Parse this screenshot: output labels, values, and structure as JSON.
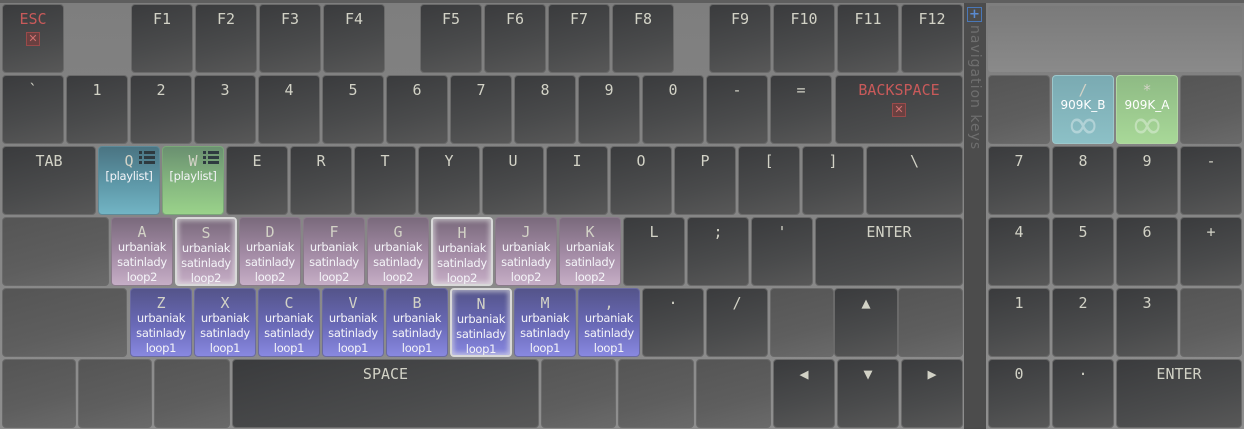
{
  "colors": {
    "pink": "#c6aec6",
    "purple": "#8888e0",
    "teal": "#72b4c4",
    "green": "#9ad28a",
    "warning_label": "#c85a5a"
  },
  "navigation_strip": {
    "label": "navigation keys",
    "icon": "plus-icon"
  },
  "keyboard": {
    "main": [
      [
        {
          "label": "ESC",
          "style": "red",
          "icon": "close-box-icon"
        },
        {
          "label": "F1"
        },
        {
          "label": "F2"
        },
        {
          "label": "F3"
        },
        {
          "label": "F4"
        },
        {
          "label": "F5"
        },
        {
          "label": "F6"
        },
        {
          "label": "F7"
        },
        {
          "label": "F8"
        },
        {
          "label": "F9"
        },
        {
          "label": "F10"
        },
        {
          "label": "F11"
        },
        {
          "label": "F12"
        }
      ],
      [
        {
          "label": "`"
        },
        {
          "label": "1"
        },
        {
          "label": "2"
        },
        {
          "label": "3"
        },
        {
          "label": "4"
        },
        {
          "label": "5"
        },
        {
          "label": "6"
        },
        {
          "label": "7"
        },
        {
          "label": "8"
        },
        {
          "label": "9"
        },
        {
          "label": "0"
        },
        {
          "label": "-"
        },
        {
          "label": "="
        },
        {
          "label": "BACKSPACE",
          "style": "red",
          "icon": "close-box-icon"
        }
      ],
      [
        {
          "label": "TAB"
        },
        {
          "label": "Q",
          "color": "teal",
          "lines": [
            "[playlist]"
          ],
          "icon": "playlist-icon"
        },
        {
          "label": "W",
          "color": "green",
          "lines": [
            "[playlist]"
          ],
          "icon": "playlist-icon"
        },
        {
          "label": "E"
        },
        {
          "label": "R"
        },
        {
          "label": "T"
        },
        {
          "label": "Y"
        },
        {
          "label": "U"
        },
        {
          "label": "I"
        },
        {
          "label": "O"
        },
        {
          "label": "P"
        },
        {
          "label": "["
        },
        {
          "label": "]"
        },
        {
          "label": "\\"
        }
      ],
      [
        {
          "label": "",
          "blank": true
        },
        {
          "label": "A",
          "color": "pink",
          "lines": [
            "urbaniak",
            "satinlady",
            "loop2"
          ]
        },
        {
          "label": "S",
          "color": "pink",
          "lines": [
            "urbaniak",
            "satinlady",
            "loop2"
          ],
          "selected": true
        },
        {
          "label": "D",
          "color": "pink",
          "lines": [
            "urbaniak",
            "satinlady",
            "loop2"
          ]
        },
        {
          "label": "F",
          "color": "pink",
          "lines": [
            "urbaniak",
            "satinlady",
            "loop2"
          ]
        },
        {
          "label": "G",
          "color": "pink",
          "lines": [
            "urbaniak",
            "satinlady",
            "loop2"
          ]
        },
        {
          "label": "H",
          "color": "pink",
          "lines": [
            "urbaniak",
            "satinlady",
            "loop2"
          ],
          "selected": true
        },
        {
          "label": "J",
          "color": "pink",
          "lines": [
            "urbaniak",
            "satinlady",
            "loop2"
          ]
        },
        {
          "label": "K",
          "color": "pink",
          "lines": [
            "urbaniak",
            "satinlady",
            "loop2"
          ]
        },
        {
          "label": "L"
        },
        {
          "label": ";"
        },
        {
          "label": "'"
        },
        {
          "label": "ENTER"
        }
      ],
      [
        {
          "label": "",
          "blank": true
        },
        {
          "label": "Z",
          "color": "purple",
          "lines": [
            "urbaniak",
            "satinlady",
            "loop1"
          ]
        },
        {
          "label": "X",
          "color": "purple",
          "lines": [
            "urbaniak",
            "satinlady",
            "loop1"
          ]
        },
        {
          "label": "C",
          "color": "purple",
          "lines": [
            "urbaniak",
            "satinlady",
            "loop1"
          ]
        },
        {
          "label": "V",
          "color": "purple",
          "lines": [
            "urbaniak",
            "satinlady",
            "loop1"
          ]
        },
        {
          "label": "B",
          "color": "purple",
          "lines": [
            "urbaniak",
            "satinlady",
            "loop1"
          ]
        },
        {
          "label": "N",
          "color": "purple",
          "lines": [
            "urbaniak",
            "satinlady",
            "loop1"
          ],
          "selected": true
        },
        {
          "label": "M",
          "color": "purple",
          "lines": [
            "urbaniak",
            "satinlady",
            "loop1"
          ]
        },
        {
          "label": ",",
          "color": "purple",
          "lines": [
            "urbaniak",
            "satinlady",
            "loop1"
          ]
        },
        {
          "label": "·"
        },
        {
          "label": "/"
        },
        {
          "label": "",
          "blank": true
        },
        {
          "label": "▲"
        },
        {
          "label": "",
          "blank": true
        }
      ],
      [
        {
          "label": "",
          "blank": true
        },
        {
          "label": "",
          "blank": true
        },
        {
          "label": "",
          "blank": true
        },
        {
          "label": "SPACE"
        },
        {
          "label": "",
          "blank": true
        },
        {
          "label": "",
          "blank": true
        },
        {
          "label": "",
          "blank": true
        },
        {
          "label": "◀"
        },
        {
          "label": "▼"
        },
        {
          "label": "▶"
        }
      ]
    ],
    "numpad": [
      [
        {
          "label": "",
          "blank": true
        },
        {
          "label": "/",
          "color": "tealpad",
          "lines": [
            "909K_B"
          ],
          "icon": "infinity-icon"
        },
        {
          "label": "*",
          "color": "greenpad",
          "lines": [
            "909K_A"
          ],
          "icon": "infinity-icon"
        },
        {
          "label": "",
          "blank": true
        }
      ],
      [
        {
          "label": "7"
        },
        {
          "label": "8"
        },
        {
          "label": "9"
        },
        {
          "label": "-"
        }
      ],
      [
        {
          "label": "4"
        },
        {
          "label": "5"
        },
        {
          "label": "6"
        },
        {
          "label": "+"
        }
      ],
      [
        {
          "label": "1"
        },
        {
          "label": "2"
        },
        {
          "label": "3"
        },
        {
          "label": "",
          "blank": true
        }
      ],
      [
        {
          "label": "0"
        },
        {
          "label": "·"
        },
        {
          "label": "ENTER"
        }
      ]
    ]
  }
}
